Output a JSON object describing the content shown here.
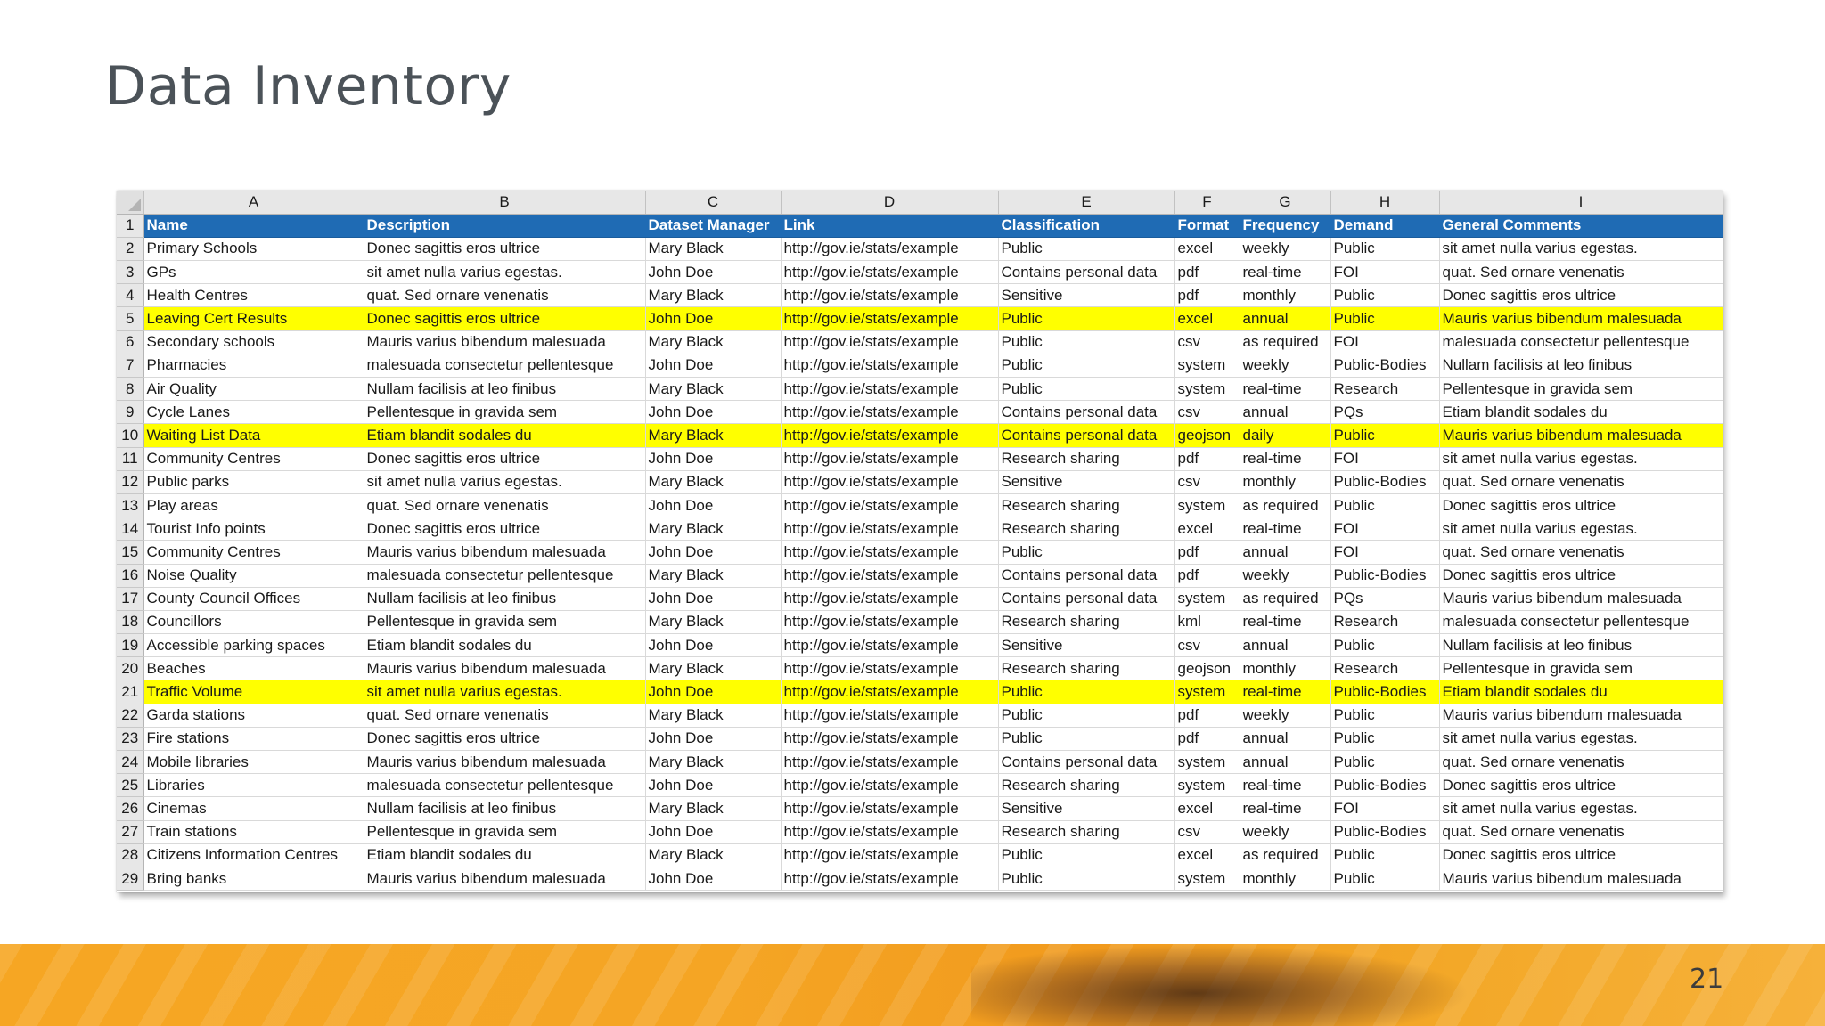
{
  "slide": {
    "title": "Data Inventory",
    "page_number": "21"
  },
  "sheet": {
    "column_letters": [
      "A",
      "B",
      "C",
      "D",
      "E",
      "F",
      "G",
      "H",
      "I"
    ],
    "header": {
      "row_number": "1",
      "cells": [
        "Name",
        "Description",
        "Dataset Manager",
        "Link",
        "Classification",
        "Format",
        "Frequency",
        "Demand",
        "General Comments"
      ]
    },
    "highlight_color": "#ffff00",
    "header_color": "#1f6bb4",
    "rows": [
      {
        "n": "2",
        "hl": false,
        "c": [
          "Primary Schools",
          "Donec sagittis eros ultrice",
          "Mary Black",
          "http://gov.ie/stats/example",
          "Public",
          "excel",
          "weekly",
          "Public",
          "sit amet nulla varius egestas."
        ]
      },
      {
        "n": "3",
        "hl": false,
        "c": [
          "GPs",
          "sit amet nulla varius egestas.",
          "John Doe",
          "http://gov.ie/stats/example",
          "Contains personal data",
          "pdf",
          "real-time",
          "FOI",
          "quat. Sed ornare venenatis"
        ]
      },
      {
        "n": "4",
        "hl": false,
        "c": [
          "Health Centres",
          "quat. Sed ornare venenatis",
          "Mary Black",
          "http://gov.ie/stats/example",
          "Sensitive",
          "pdf",
          "monthly",
          "Public",
          "Donec sagittis eros ultrice"
        ]
      },
      {
        "n": "5",
        "hl": true,
        "c": [
          "Leaving Cert Results",
          "Donec sagittis eros ultrice",
          "John Doe",
          "http://gov.ie/stats/example",
          "Public",
          "excel",
          "annual",
          "Public",
          "Mauris varius bibendum malesuada"
        ]
      },
      {
        "n": "6",
        "hl": false,
        "c": [
          "Secondary schools",
          "Mauris varius bibendum malesuada",
          "Mary Black",
          "http://gov.ie/stats/example",
          "Public",
          "csv",
          "as required",
          "FOI",
          "malesuada consectetur pellentesque"
        ]
      },
      {
        "n": "7",
        "hl": false,
        "c": [
          "Pharmacies",
          "malesuada consectetur pellentesque",
          "John Doe",
          "http://gov.ie/stats/example",
          "Public",
          "system",
          "weekly",
          "Public-Bodies",
          "Nullam facilisis at leo finibus"
        ]
      },
      {
        "n": "8",
        "hl": false,
        "c": [
          "Air Quality",
          "Nullam facilisis at leo finibus",
          "Mary Black",
          "http://gov.ie/stats/example",
          "Public",
          "system",
          "real-time",
          "Research",
          "Pellentesque in gravida sem"
        ]
      },
      {
        "n": "9",
        "hl": false,
        "c": [
          "Cycle Lanes",
          "Pellentesque in gravida sem",
          "John Doe",
          "http://gov.ie/stats/example",
          "Contains personal data",
          "csv",
          "annual",
          "PQs",
          "Etiam blandit sodales du"
        ]
      },
      {
        "n": "10",
        "hl": true,
        "c": [
          "Waiting List Data",
          "Etiam blandit sodales du",
          "Mary Black",
          "http://gov.ie/stats/example",
          "Contains personal data",
          "geojson",
          "daily",
          "Public",
          "Mauris varius bibendum malesuada"
        ]
      },
      {
        "n": "11",
        "hl": false,
        "c": [
          "Community Centres",
          "Donec sagittis eros ultrice",
          "John Doe",
          "http://gov.ie/stats/example",
          "Research sharing",
          "pdf",
          "real-time",
          "FOI",
          "sit amet nulla varius egestas."
        ]
      },
      {
        "n": "12",
        "hl": false,
        "c": [
          "Public parks",
          "sit amet nulla varius egestas.",
          "Mary Black",
          "http://gov.ie/stats/example",
          "Sensitive",
          "csv",
          "monthly",
          "Public-Bodies",
          "quat. Sed ornare venenatis"
        ]
      },
      {
        "n": "13",
        "hl": false,
        "c": [
          "Play areas",
          "quat. Sed ornare venenatis",
          "John Doe",
          "http://gov.ie/stats/example",
          "Research sharing",
          "system",
          "as required",
          "Public",
          "Donec sagittis eros ultrice"
        ]
      },
      {
        "n": "14",
        "hl": false,
        "c": [
          "Tourist Info points",
          "Donec sagittis eros ultrice",
          "Mary Black",
          "http://gov.ie/stats/example",
          "Research sharing",
          "excel",
          "real-time",
          "FOI",
          "sit amet nulla varius egestas."
        ]
      },
      {
        "n": "15",
        "hl": false,
        "c": [
          "Community Centres",
          "Mauris varius bibendum malesuada",
          "John Doe",
          "http://gov.ie/stats/example",
          "Public",
          "pdf",
          "annual",
          "FOI",
          "quat. Sed ornare venenatis"
        ]
      },
      {
        "n": "16",
        "hl": false,
        "c": [
          "Noise Quality",
          "malesuada consectetur pellentesque",
          "Mary Black",
          "http://gov.ie/stats/example",
          "Contains personal data",
          "pdf",
          "weekly",
          "Public-Bodies",
          "Donec sagittis eros ultrice"
        ]
      },
      {
        "n": "17",
        "hl": false,
        "c": [
          "County Council Offices",
          "Nullam facilisis at leo finibus",
          "John Doe",
          "http://gov.ie/stats/example",
          "Contains personal data",
          "system",
          "as required",
          "PQs",
          "Mauris varius bibendum malesuada"
        ]
      },
      {
        "n": "18",
        "hl": false,
        "c": [
          "Councillors",
          "Pellentesque in gravida sem",
          "Mary Black",
          "http://gov.ie/stats/example",
          "Research sharing",
          "kml",
          "real-time",
          "Research",
          "malesuada consectetur pellentesque"
        ]
      },
      {
        "n": "19",
        "hl": false,
        "c": [
          "Accessible parking spaces",
          "Etiam blandit sodales du",
          "John Doe",
          "http://gov.ie/stats/example",
          "Sensitive",
          "csv",
          "annual",
          "Public",
          "Nullam facilisis at leo finibus"
        ]
      },
      {
        "n": "20",
        "hl": false,
        "c": [
          "Beaches",
          "Mauris varius bibendum malesuada",
          "Mary Black",
          "http://gov.ie/stats/example",
          "Research sharing",
          "geojson",
          "monthly",
          "Research",
          "Pellentesque in gravida sem"
        ]
      },
      {
        "n": "21",
        "hl": true,
        "c": [
          "Traffic Volume",
          "sit amet nulla varius egestas.",
          "John Doe",
          "http://gov.ie/stats/example",
          "Public",
          "system",
          "real-time",
          "Public-Bodies",
          "Etiam blandit sodales du"
        ]
      },
      {
        "n": "22",
        "hl": false,
        "c": [
          "Garda stations",
          "quat. Sed ornare venenatis",
          "Mary Black",
          "http://gov.ie/stats/example",
          "Public",
          "pdf",
          "weekly",
          "Public",
          "Mauris varius bibendum malesuada"
        ]
      },
      {
        "n": "23",
        "hl": false,
        "c": [
          "Fire stations",
          "Donec sagittis eros ultrice",
          "John Doe",
          "http://gov.ie/stats/example",
          "Public",
          "pdf",
          "annual",
          "Public",
          "sit amet nulla varius egestas."
        ]
      },
      {
        "n": "24",
        "hl": false,
        "c": [
          "Mobile libraries",
          "Mauris varius bibendum malesuada",
          "Mary Black",
          "http://gov.ie/stats/example",
          "Contains personal data",
          "system",
          "annual",
          "Public",
          "quat. Sed ornare venenatis"
        ]
      },
      {
        "n": "25",
        "hl": false,
        "c": [
          "Libraries",
          "malesuada consectetur pellentesque",
          "John Doe",
          "http://gov.ie/stats/example",
          "Research sharing",
          "system",
          "real-time",
          "Public-Bodies",
          "Donec sagittis eros ultrice"
        ]
      },
      {
        "n": "26",
        "hl": false,
        "c": [
          "Cinemas",
          "Nullam facilisis at leo finibus",
          "Mary Black",
          "http://gov.ie/stats/example",
          "Sensitive",
          "excel",
          "real-time",
          "FOI",
          "sit amet nulla varius egestas."
        ]
      },
      {
        "n": "27",
        "hl": false,
        "c": [
          "Train stations",
          "Pellentesque in gravida sem",
          "John Doe",
          "http://gov.ie/stats/example",
          "Research sharing",
          "csv",
          "weekly",
          "Public-Bodies",
          "quat. Sed ornare venenatis"
        ]
      },
      {
        "n": "28",
        "hl": false,
        "c": [
          "Citizens Information Centres",
          "Etiam blandit sodales du",
          "Mary Black",
          "http://gov.ie/stats/example",
          "Public",
          "excel",
          "as required",
          "Public",
          "Donec sagittis eros ultrice"
        ]
      },
      {
        "n": "29",
        "hl": false,
        "c": [
          "Bring banks",
          "Mauris varius bibendum malesuada",
          "John Doe",
          "http://gov.ie/stats/example",
          "Public",
          "system",
          "monthly",
          "Public",
          "Mauris varius bibendum malesuada"
        ]
      }
    ]
  }
}
